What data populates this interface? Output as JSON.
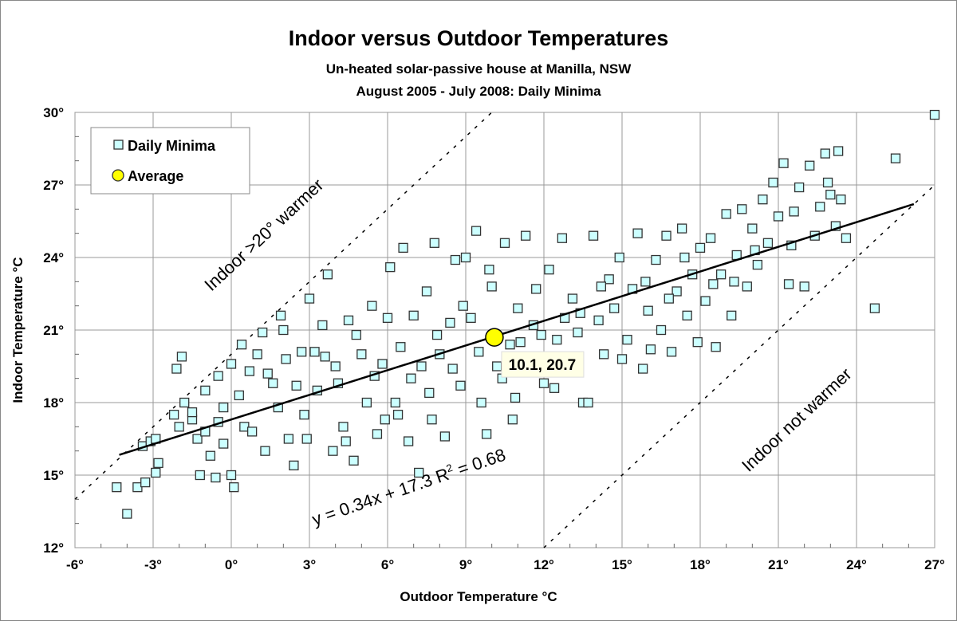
{
  "chart_data": {
    "type": "scatter",
    "title": "Indoor versus Outdoor Temperatures",
    "subtitles": [
      "Un-heated solar-passive house at Manilla, NSW",
      "August 2005 - July 2008: Daily Minima"
    ],
    "xlabel": "Outdoor Temperature °C",
    "ylabel": "Indoor Temperature °C",
    "xlim": [
      -6,
      27
    ],
    "ylim": [
      12,
      30
    ],
    "xticks": [
      "-6°",
      "-3°",
      "0°",
      "3°",
      "6°",
      "9°",
      "12°",
      "15°",
      "18°",
      "21°",
      "24°",
      "27°"
    ],
    "yticks": [
      "12°",
      "15°",
      "18°",
      "21°",
      "24°",
      "27°",
      "30°"
    ],
    "xtick_values": [
      -6,
      -3,
      0,
      3,
      6,
      9,
      12,
      15,
      18,
      21,
      24,
      27
    ],
    "ytick_values": [
      12,
      15,
      18,
      21,
      24,
      27,
      30
    ],
    "grid": true,
    "legend": {
      "placement": "top-left",
      "entries": [
        "Daily Minima",
        "Average"
      ]
    },
    "colors": {
      "marker_fill": "#ccffff",
      "marker_edge": "#333333",
      "average_fill": "#ffff00",
      "label_box": "#ffffe6"
    },
    "series": [
      {
        "name": "Daily Minima",
        "marker": "square",
        "points": [
          [
            -4.4,
            14.5
          ],
          [
            -4,
            13.4
          ],
          [
            -3.6,
            14.5
          ],
          [
            -3.3,
            14.7
          ],
          [
            -3.4,
            16.2
          ],
          [
            -3.1,
            16.4
          ],
          [
            -2.8,
            15.5
          ],
          [
            -2.9,
            15.1
          ],
          [
            -2.9,
            16.5
          ],
          [
            -2.2,
            17.5
          ],
          [
            -2.1,
            19.4
          ],
          [
            -1.9,
            19.9
          ],
          [
            -2,
            17
          ],
          [
            -1.8,
            18
          ],
          [
            -1.5,
            17.3
          ],
          [
            -1.3,
            16.5
          ],
          [
            -1.2,
            15
          ],
          [
            -1,
            18.5
          ],
          [
            -0.8,
            15.8
          ],
          [
            -0.5,
            19.1
          ],
          [
            -0.3,
            17.8
          ],
          [
            -0.3,
            16.3
          ],
          [
            -0.6,
            14.9
          ],
          [
            0,
            15
          ],
          [
            0.1,
            14.5
          ],
          [
            0,
            19.6
          ],
          [
            0.3,
            18.3
          ],
          [
            -1.5,
            17.6
          ],
          [
            -1,
            16.8
          ],
          [
            -0.5,
            17.2
          ],
          [
            0.5,
            17
          ],
          [
            0.7,
            19.3
          ],
          [
            1,
            20
          ],
          [
            1.3,
            16
          ],
          [
            1.4,
            19.2
          ],
          [
            1.8,
            17.8
          ],
          [
            2,
            21
          ],
          [
            2.2,
            16.5
          ],
          [
            2.4,
            15.4
          ],
          [
            2.5,
            18.7
          ],
          [
            2.7,
            20.1
          ],
          [
            2.9,
            16.5
          ],
          [
            3,
            22.3
          ],
          [
            1.2,
            20.9
          ],
          [
            0.8,
            16.8
          ],
          [
            1.6,
            18.8
          ],
          [
            2.1,
            19.8
          ],
          [
            2.8,
            17.5
          ],
          [
            0.4,
            20.4
          ],
          [
            1.9,
            21.6
          ],
          [
            3.3,
            18.5
          ],
          [
            3.5,
            21.2
          ],
          [
            3.7,
            23.3
          ],
          [
            3.9,
            16
          ],
          [
            4,
            19.5
          ],
          [
            4.3,
            17
          ],
          [
            4.5,
            21.4
          ],
          [
            4.7,
            15.6
          ],
          [
            5,
            20
          ],
          [
            5.2,
            18
          ],
          [
            5.4,
            22
          ],
          [
            5.6,
            16.7
          ],
          [
            5.8,
            19.6
          ],
          [
            6,
            21.5
          ],
          [
            3.2,
            20.1
          ],
          [
            4.1,
            18.8
          ],
          [
            4.8,
            20.8
          ],
          [
            5.5,
            19.1
          ],
          [
            3.6,
            19.9
          ],
          [
            4.4,
            16.4
          ],
          [
            5.9,
            17.3
          ],
          [
            6.1,
            23.6
          ],
          [
            6.3,
            18
          ],
          [
            6.5,
            20.3
          ],
          [
            6.6,
            24.4
          ],
          [
            6.8,
            16.4
          ],
          [
            7,
            21.6
          ],
          [
            7.2,
            15.1
          ],
          [
            7.3,
            19.5
          ],
          [
            7.5,
            22.6
          ],
          [
            7.7,
            17.3
          ],
          [
            7.8,
            24.6
          ],
          [
            8,
            20
          ],
          [
            8.2,
            16.6
          ],
          [
            8.4,
            21.3
          ],
          [
            8.6,
            23.9
          ],
          [
            8.8,
            18.7
          ],
          [
            9,
            24
          ],
          [
            6.9,
            19
          ],
          [
            7.9,
            20.8
          ],
          [
            8.5,
            19.4
          ],
          [
            6.4,
            17.5
          ],
          [
            8.9,
            22
          ],
          [
            7.6,
            18.4
          ],
          [
            9.2,
            21.5
          ],
          [
            9.4,
            25.1
          ],
          [
            9.6,
            18
          ],
          [
            9.8,
            16.7
          ],
          [
            10,
            22.8
          ],
          [
            10.2,
            19.5
          ],
          [
            10.5,
            24.6
          ],
          [
            10.7,
            20.4
          ],
          [
            10.9,
            18.2
          ],
          [
            11,
            21.9
          ],
          [
            11.3,
            24.9
          ],
          [
            11.5,
            19.3
          ],
          [
            11.7,
            22.7
          ],
          [
            11.9,
            20.8
          ],
          [
            12,
            18.8
          ],
          [
            9.5,
            20.1
          ],
          [
            10.4,
            19
          ],
          [
            11.1,
            20.5
          ],
          [
            9.9,
            23.5
          ],
          [
            11.6,
            21.2
          ],
          [
            10.8,
            17.3
          ],
          [
            12.2,
            23.5
          ],
          [
            12.5,
            20.6
          ],
          [
            12.7,
            24.8
          ],
          [
            12.9,
            19.3
          ],
          [
            13.1,
            22.3
          ],
          [
            13.3,
            20.9
          ],
          [
            13.5,
            18
          ],
          [
            13.7,
            18
          ],
          [
            13.9,
            24.9
          ],
          [
            14.1,
            21.4
          ],
          [
            14.3,
            20
          ],
          [
            14.5,
            23.1
          ],
          [
            14.7,
            21.9
          ],
          [
            14.9,
            24
          ],
          [
            15,
            19.8
          ],
          [
            12.4,
            18.6
          ],
          [
            13.4,
            21.7
          ],
          [
            14.2,
            22.8
          ],
          [
            12.8,
            21.5
          ],
          [
            15.2,
            20.6
          ],
          [
            15.4,
            22.7
          ],
          [
            15.6,
            25
          ],
          [
            15.8,
            19.4
          ],
          [
            16,
            21.8
          ],
          [
            16.3,
            23.9
          ],
          [
            16.5,
            21
          ],
          [
            16.7,
            24.9
          ],
          [
            16.9,
            20.1
          ],
          [
            17.1,
            22.6
          ],
          [
            17.3,
            25.2
          ],
          [
            17.5,
            21.6
          ],
          [
            17.7,
            23.3
          ],
          [
            17.9,
            20.5
          ],
          [
            18,
            24.4
          ],
          [
            15.9,
            23
          ],
          [
            16.8,
            22.3
          ],
          [
            17.4,
            24
          ],
          [
            16.1,
            20.2
          ],
          [
            18.2,
            22.2
          ],
          [
            18.4,
            24.8
          ],
          [
            18.6,
            20.3
          ],
          [
            18.8,
            23.3
          ],
          [
            19,
            25.8
          ],
          [
            19.2,
            21.6
          ],
          [
            19.4,
            24.1
          ],
          [
            19.6,
            26
          ],
          [
            19.8,
            22.8
          ],
          [
            20,
            25.2
          ],
          [
            20.2,
            23.7
          ],
          [
            20.4,
            26.4
          ],
          [
            20.6,
            24.6
          ],
          [
            20.8,
            27.1
          ],
          [
            21,
            25.7
          ],
          [
            18.5,
            22.9
          ],
          [
            19.3,
            23
          ],
          [
            20.1,
            24.3
          ],
          [
            21.2,
            27.9
          ],
          [
            21.4,
            22.9
          ],
          [
            21.6,
            25.9
          ],
          [
            21.8,
            26.9
          ],
          [
            22,
            22.8
          ],
          [
            22.2,
            27.8
          ],
          [
            22.4,
            24.9
          ],
          [
            22.6,
            26.1
          ],
          [
            22.8,
            28.3
          ],
          [
            23,
            26.6
          ],
          [
            23.2,
            25.3
          ],
          [
            23.3,
            28.4
          ],
          [
            23.4,
            26.4
          ],
          [
            23.6,
            24.8
          ],
          [
            21.5,
            24.5
          ],
          [
            22.9,
            27.1
          ],
          [
            24.7,
            21.9
          ],
          [
            25.5,
            28.1
          ],
          [
            27,
            29.9
          ]
        ]
      },
      {
        "name": "Average",
        "marker": "circle",
        "points": [
          [
            10.1,
            20.7
          ]
        ]
      }
    ],
    "average_label": "10.1, 20.7",
    "trendline": {
      "slope": 0.34,
      "intercept": 17.3,
      "x_range": [
        -4.3,
        26.2
      ],
      "label": "y = 0.34x + 17.3   R",
      "r2_sup": "2",
      "r2_value": " = 0.68"
    },
    "reference_lines": [
      {
        "offset": 20,
        "label": "Indoor >20° warmer",
        "style": "dashed"
      },
      {
        "offset": 0,
        "label": "Indoor not warmer",
        "style": "dashed"
      }
    ]
  }
}
